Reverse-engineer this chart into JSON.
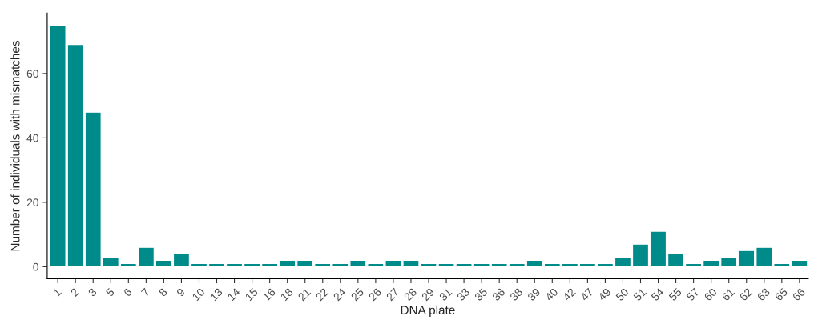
{
  "chart_data": {
    "type": "bar",
    "xlabel": "DNA plate",
    "ylabel": "Number of individuals with mismatches",
    "categories": [
      "1",
      "2",
      "3",
      "5",
      "6",
      "7",
      "8",
      "9",
      "10",
      "13",
      "14",
      "15",
      "16",
      "18",
      "21",
      "22",
      "24",
      "25",
      "26",
      "27",
      "28",
      "29",
      "31",
      "33",
      "35",
      "36",
      "38",
      "39",
      "40",
      "42",
      "47",
      "49",
      "50",
      "51",
      "54",
      "55",
      "57",
      "60",
      "61",
      "62",
      "63",
      "65",
      "66"
    ],
    "values": [
      75,
      69,
      48,
      3,
      1,
      6,
      2,
      4,
      1,
      1,
      1,
      1,
      1,
      2,
      2,
      1,
      1,
      2,
      1,
      2,
      2,
      1,
      1,
      1,
      1,
      1,
      1,
      2,
      1,
      1,
      1,
      1,
      3,
      7,
      11,
      4,
      1,
      2,
      3,
      5,
      6,
      1,
      2
    ],
    "color": "#008b8b",
    "ylim": [
      -3.75,
      78.75
    ],
    "yticks": [
      0,
      20,
      40,
      60
    ],
    "grid": false,
    "legend": false
  }
}
